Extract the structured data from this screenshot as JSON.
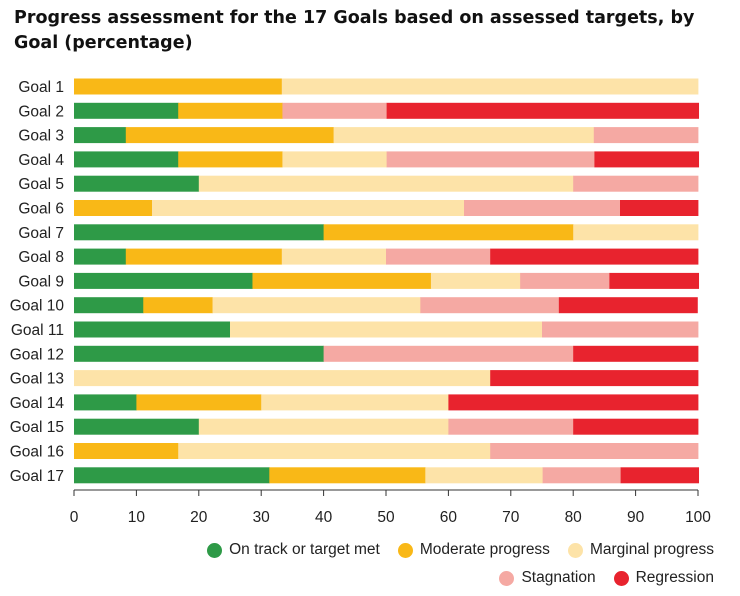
{
  "chart_data": {
    "type": "bar",
    "orientation": "horizontal",
    "stacked": true,
    "title": "Progress assessment for the 17 Goals based on assessed targets, by Goal (percentage)",
    "xlabel": "",
    "ylabel": "",
    "xlim": [
      0,
      100
    ],
    "x_ticks": [
      "0",
      "10",
      "20",
      "30",
      "40",
      "50",
      "60",
      "70",
      "80",
      "90",
      "100"
    ],
    "grid": false,
    "legend_position": "bottom-right",
    "categories": [
      "Goal 1",
      "Goal 2",
      "Goal 3",
      "Goal 4",
      "Goal 5",
      "Goal 6",
      "Goal 7",
      "Goal 8",
      "Goal 9",
      "Goal 10",
      "Goal 11",
      "Goal 12",
      "Goal 13",
      "Goal 14",
      "Goal 15",
      "Goal 16",
      "Goal 17"
    ],
    "series": [
      {
        "name": "On track or target met",
        "color": "#2e9a47",
        "values": [
          0,
          16.7,
          8.3,
          16.7,
          20,
          0,
          40,
          8.3,
          28.6,
          11.1,
          25,
          40,
          0,
          10,
          20,
          0,
          31.3
        ]
      },
      {
        "name": "Moderate progress",
        "color": "#f9b817",
        "values": [
          33.3,
          16.7,
          33.3,
          16.7,
          0,
          12.5,
          40,
          25,
          28.6,
          11.1,
          0,
          0,
          0,
          20,
          0,
          16.7,
          25
        ]
      },
      {
        "name": "Marginal progress",
        "color": "#fde3a8",
        "values": [
          66.7,
          0,
          41.7,
          16.7,
          60,
          50,
          20,
          16.7,
          14.3,
          33.3,
          50,
          0,
          66.7,
          30,
          40,
          50,
          18.8
        ]
      },
      {
        "name": "Stagnation",
        "color": "#f5a9a3",
        "values": [
          0,
          16.7,
          16.7,
          33.3,
          20,
          25,
          0,
          16.7,
          14.3,
          22.2,
          25,
          40,
          0,
          0,
          20,
          33.3,
          12.5
        ]
      },
      {
        "name": "Regression",
        "color": "#e8232e",
        "values": [
          0,
          50,
          0,
          16.7,
          0,
          12.5,
          0,
          33.3,
          14.3,
          22.2,
          0,
          20,
          33.3,
          40,
          20,
          0,
          12.5
        ]
      }
    ]
  }
}
